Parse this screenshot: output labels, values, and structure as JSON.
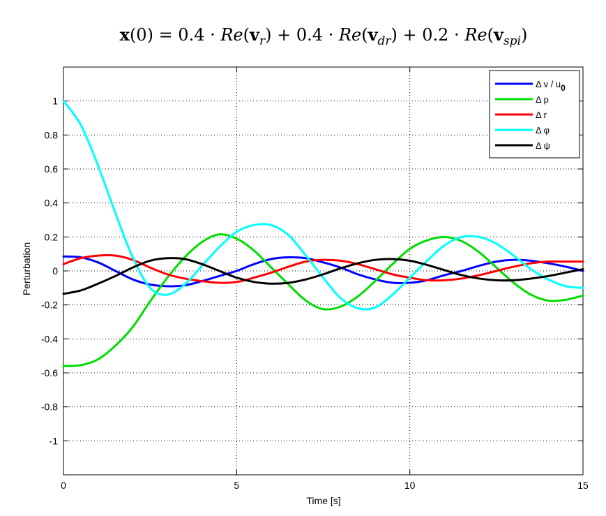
{
  "chart_data": {
    "type": "line",
    "title": "x(0) = 0.4 · Re(v_r) + 0.4 · Re(v_dr) + 0.2 · Re(v_spi)",
    "title_parts": [
      {
        "text": "x",
        "bold": true
      },
      {
        "text": "(0) = 0.4 · "
      },
      {
        "text": "Re",
        "italic": true
      },
      {
        "text": "("
      },
      {
        "text": "v",
        "bold": true
      },
      {
        "text": "r",
        "italic": true,
        "sub": true
      },
      {
        "text": ") + 0.4 · "
      },
      {
        "text": "Re",
        "italic": true
      },
      {
        "text": "("
      },
      {
        "text": "v",
        "bold": true
      },
      {
        "text": "dr",
        "italic": true,
        "sub": true
      },
      {
        "text": ") + 0.2 · "
      },
      {
        "text": "Re",
        "italic": true
      },
      {
        "text": "("
      },
      {
        "text": "v",
        "bold": true
      },
      {
        "text": "spi",
        "italic": true,
        "sub": true
      },
      {
        "text": ")"
      }
    ],
    "xlabel": "Time [s]",
    "ylabel": "Perturbation",
    "xlim": [
      0,
      15
    ],
    "ylim": [
      -1.2,
      1.2
    ],
    "xticks": [
      0,
      5,
      10,
      15
    ],
    "xtick_labels": [
      "0",
      "5",
      "10",
      "15"
    ],
    "yticks": [
      -1,
      -0.8,
      -0.6,
      -0.4,
      -0.2,
      0,
      0.2,
      0.4,
      0.6,
      0.8,
      1
    ],
    "ytick_labels": [
      "-1",
      "-0.8",
      "-0.6",
      "-0.4",
      "-0.2",
      "0",
      "0.2",
      "0.4",
      "0.6",
      "0.8",
      "1"
    ],
    "grid": true,
    "legend_position": "top-right",
    "x": [
      0,
      0.5,
      1,
      1.5,
      2,
      2.5,
      3,
      3.5,
      4,
      4.5,
      5,
      5.5,
      6,
      6.5,
      7,
      7.5,
      8,
      8.5,
      9,
      9.5,
      10,
      10.5,
      11,
      11.5,
      12,
      12.5,
      13,
      13.5,
      14,
      14.5,
      15
    ],
    "series": [
      {
        "name": "Δ v / u0",
        "label_main": "Δ v / u",
        "label_sub": "0",
        "color": "#0000ff",
        "values": [
          0.085,
          0.08,
          0.05,
          0.0,
          -0.05,
          -0.08,
          -0.09,
          -0.085,
          -0.06,
          -0.03,
          0.0,
          0.04,
          0.07,
          0.08,
          0.075,
          0.05,
          0.02,
          -0.02,
          -0.05,
          -0.07,
          -0.07,
          -0.055,
          -0.025,
          0.0,
          0.03,
          0.055,
          0.065,
          0.06,
          0.045,
          0.025,
          0.0
        ]
      },
      {
        "name": "Δ p",
        "label_main": "Δ p",
        "label_sub": "",
        "color": "#00dd00",
        "values": [
          -0.56,
          -0.555,
          -0.52,
          -0.44,
          -0.33,
          -0.18,
          -0.04,
          0.08,
          0.17,
          0.215,
          0.19,
          0.12,
          0.02,
          -0.08,
          -0.175,
          -0.225,
          -0.21,
          -0.15,
          -0.06,
          0.04,
          0.13,
          0.18,
          0.2,
          0.175,
          0.11,
          0.02,
          -0.07,
          -0.14,
          -0.175,
          -0.17,
          -0.145
        ]
      },
      {
        "name": "Δ r",
        "label_main": "Δ r",
        "label_sub": "",
        "color": "#ff0000",
        "values": [
          0.04,
          0.075,
          0.09,
          0.09,
          0.065,
          0.02,
          -0.02,
          -0.045,
          -0.06,
          -0.07,
          -0.065,
          -0.04,
          -0.01,
          0.025,
          0.055,
          0.065,
          0.06,
          0.04,
          0.01,
          -0.02,
          -0.04,
          -0.055,
          -0.055,
          -0.045,
          -0.025,
          0.0,
          0.025,
          0.045,
          0.055,
          0.055,
          0.055
        ]
      },
      {
        "name": "Δ φ",
        "label_main": "Δ φ",
        "label_sub": "",
        "color": "#00ffff",
        "values": [
          1.0,
          0.86,
          0.62,
          0.34,
          0.08,
          -0.1,
          -0.14,
          -0.08,
          0.03,
          0.14,
          0.23,
          0.27,
          0.27,
          0.21,
          0.09,
          -0.04,
          -0.16,
          -0.22,
          -0.215,
          -0.14,
          -0.04,
          0.06,
          0.15,
          0.2,
          0.2,
          0.16,
          0.09,
          0.01,
          -0.05,
          -0.09,
          -0.1
        ]
      },
      {
        "name": "Δ ψ",
        "label_main": "Δ ψ",
        "label_sub": "",
        "color": "#000000",
        "values": [
          -0.135,
          -0.115,
          -0.075,
          -0.03,
          0.02,
          0.06,
          0.075,
          0.07,
          0.04,
          0.0,
          -0.04,
          -0.065,
          -0.075,
          -0.07,
          -0.05,
          -0.02,
          0.015,
          0.045,
          0.065,
          0.07,
          0.06,
          0.035,
          0.005,
          -0.025,
          -0.045,
          -0.055,
          -0.055,
          -0.045,
          -0.03,
          -0.01,
          0.01
        ]
      }
    ]
  }
}
